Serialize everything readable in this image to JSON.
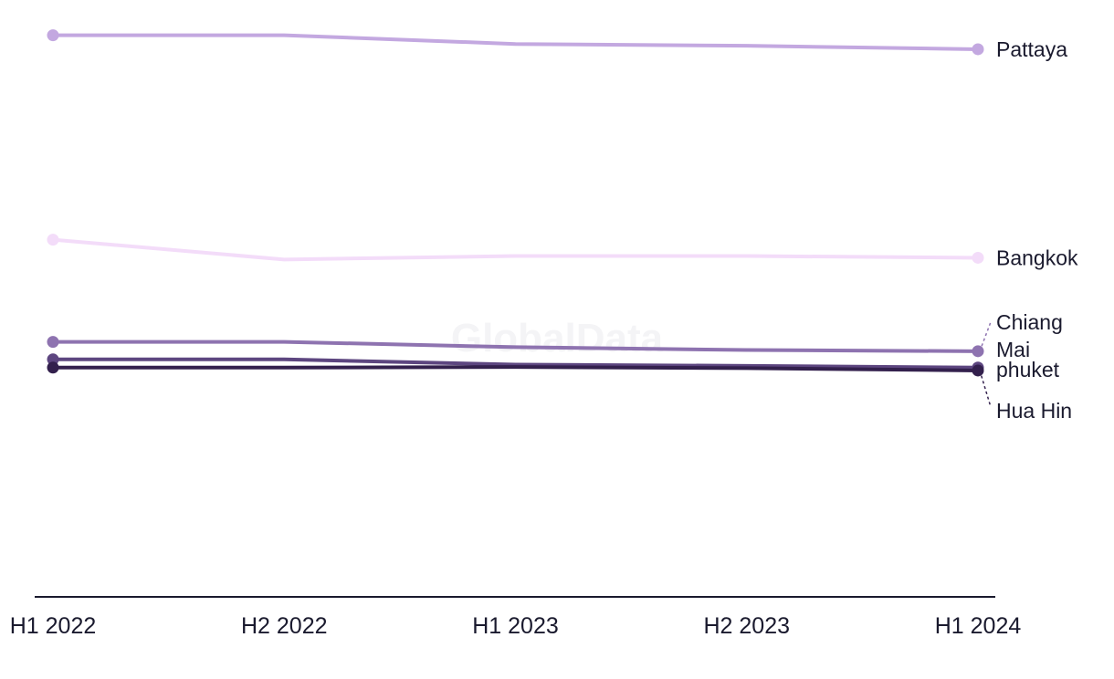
{
  "chart_data": {
    "type": "line",
    "title": "",
    "xlabel": "",
    "ylabel": "",
    "categories": [
      "H1 2022",
      "H2 2022",
      "H1 2023",
      "H2 2023",
      "H1 2024"
    ],
    "ylim": [
      0,
      100
    ],
    "grid": false,
    "legend": "direct labels at right end of lines",
    "watermark": "GlobalData",
    "series": [
      {
        "name": "Pattaya",
        "color": "#c3a8e0",
        "values": [
          96,
          96,
          94.5,
          94.2,
          93.6
        ]
      },
      {
        "name": "Bangkok",
        "color": "#f3dcf9",
        "values": [
          61,
          57.6,
          58.2,
          58.2,
          57.9
        ]
      },
      {
        "name": "Chiang Mai",
        "color": "#8e73b0",
        "values": [
          43.5,
          43.5,
          42.6,
          42.1,
          41.9
        ]
      },
      {
        "name": "phuket",
        "color": "#5d4680",
        "values": [
          40.5,
          40.5,
          39.6,
          39.4,
          39.1
        ]
      },
      {
        "name": "Hua Hin",
        "color": "#33204d",
        "values": [
          39.1,
          39.1,
          39.2,
          39.0,
          38.6
        ]
      }
    ]
  }
}
